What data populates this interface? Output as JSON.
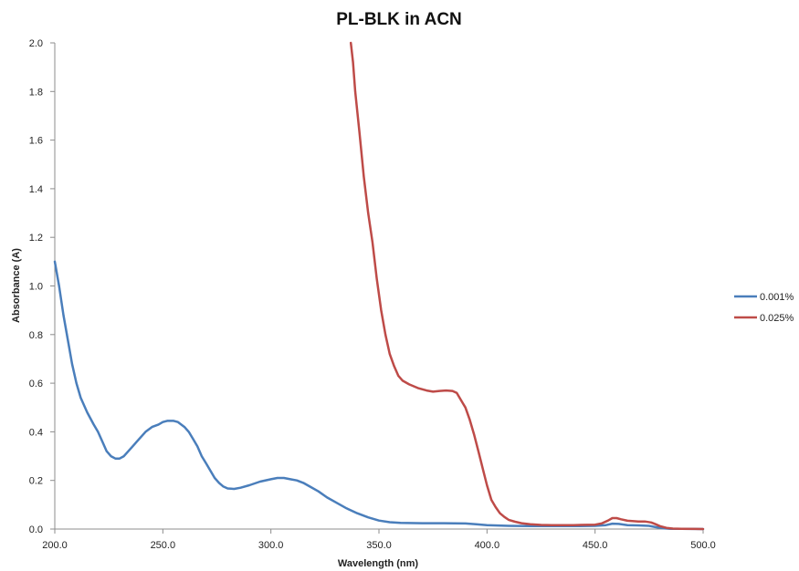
{
  "chart_data": {
    "type": "line",
    "title": "PL-BLK in ACN",
    "xlabel": "Wavelength (nm)",
    "ylabel": "Absorbance (A)",
    "xlim": [
      200,
      500
    ],
    "ylim": [
      0,
      2.0
    ],
    "x_ticks": [
      "200.0",
      "250.0",
      "300.0",
      "350.0",
      "400.0",
      "450.0",
      "500.0"
    ],
    "y_ticks": [
      "0.0",
      "0.2",
      "0.4",
      "0.6",
      "0.8",
      "1.0",
      "1.2",
      "1.4",
      "1.6",
      "1.8",
      "2.0"
    ],
    "grid": false,
    "legend_position": "right",
    "series": [
      {
        "name": "0.001%",
        "color": "#4a7ebb",
        "points": [
          [
            200,
            1.1
          ],
          [
            202,
            1.0
          ],
          [
            204,
            0.88
          ],
          [
            206,
            0.78
          ],
          [
            208,
            0.68
          ],
          [
            210,
            0.6
          ],
          [
            212,
            0.54
          ],
          [
            215,
            0.48
          ],
          [
            218,
            0.43
          ],
          [
            220,
            0.4
          ],
          [
            222,
            0.36
          ],
          [
            224,
            0.32
          ],
          [
            226,
            0.3
          ],
          [
            228,
            0.29
          ],
          [
            230,
            0.29
          ],
          [
            232,
            0.3
          ],
          [
            234,
            0.32
          ],
          [
            236,
            0.34
          ],
          [
            238,
            0.36
          ],
          [
            240,
            0.38
          ],
          [
            242,
            0.4
          ],
          [
            245,
            0.42
          ],
          [
            248,
            0.43
          ],
          [
            250,
            0.44
          ],
          [
            252,
            0.445
          ],
          [
            255,
            0.445
          ],
          [
            257,
            0.44
          ],
          [
            260,
            0.42
          ],
          [
            262,
            0.4
          ],
          [
            264,
            0.37
          ],
          [
            266,
            0.34
          ],
          [
            268,
            0.3
          ],
          [
            270,
            0.27
          ],
          [
            272,
            0.24
          ],
          [
            274,
            0.21
          ],
          [
            276,
            0.19
          ],
          [
            278,
            0.175
          ],
          [
            280,
            0.167
          ],
          [
            283,
            0.165
          ],
          [
            286,
            0.17
          ],
          [
            290,
            0.18
          ],
          [
            295,
            0.195
          ],
          [
            300,
            0.205
          ],
          [
            303,
            0.21
          ],
          [
            306,
            0.21
          ],
          [
            309,
            0.205
          ],
          [
            312,
            0.2
          ],
          [
            315,
            0.19
          ],
          [
            318,
            0.175
          ],
          [
            322,
            0.155
          ],
          [
            326,
            0.13
          ],
          [
            330,
            0.11
          ],
          [
            335,
            0.085
          ],
          [
            340,
            0.065
          ],
          [
            345,
            0.048
          ],
          [
            350,
            0.035
          ],
          [
            355,
            0.028
          ],
          [
            360,
            0.025
          ],
          [
            370,
            0.024
          ],
          [
            380,
            0.024
          ],
          [
            390,
            0.023
          ],
          [
            395,
            0.02
          ],
          [
            400,
            0.016
          ],
          [
            410,
            0.013
          ],
          [
            420,
            0.012
          ],
          [
            430,
            0.012
          ],
          [
            440,
            0.012
          ],
          [
            450,
            0.013
          ],
          [
            455,
            0.016
          ],
          [
            458,
            0.022
          ],
          [
            461,
            0.021
          ],
          [
            465,
            0.016
          ],
          [
            470,
            0.015
          ],
          [
            475,
            0.013
          ],
          [
            478,
            0.008
          ],
          [
            482,
            0.003
          ],
          [
            485,
            0.001
          ],
          [
            490,
            0.001
          ],
          [
            500,
            0.0
          ]
        ]
      },
      {
        "name": "0.025%",
        "color": "#be4b48",
        "points": [
          [
            337,
            2.0
          ],
          [
            338,
            1.92
          ],
          [
            339,
            1.8
          ],
          [
            341,
            1.63
          ],
          [
            343,
            1.45
          ],
          [
            345,
            1.3
          ],
          [
            347,
            1.18
          ],
          [
            349,
            1.03
          ],
          [
            351,
            0.9
          ],
          [
            353,
            0.8
          ],
          [
            355,
            0.72
          ],
          [
            357,
            0.67
          ],
          [
            359,
            0.63
          ],
          [
            361,
            0.61
          ],
          [
            364,
            0.595
          ],
          [
            368,
            0.58
          ],
          [
            372,
            0.57
          ],
          [
            375,
            0.565
          ],
          [
            378,
            0.568
          ],
          [
            381,
            0.57
          ],
          [
            384,
            0.568
          ],
          [
            386,
            0.56
          ],
          [
            388,
            0.53
          ],
          [
            390,
            0.5
          ],
          [
            392,
            0.45
          ],
          [
            394,
            0.39
          ],
          [
            396,
            0.32
          ],
          [
            398,
            0.25
          ],
          [
            400,
            0.18
          ],
          [
            402,
            0.12
          ],
          [
            404,
            0.09
          ],
          [
            406,
            0.065
          ],
          [
            408,
            0.05
          ],
          [
            410,
            0.038
          ],
          [
            413,
            0.03
          ],
          [
            416,
            0.024
          ],
          [
            420,
            0.02
          ],
          [
            425,
            0.017
          ],
          [
            430,
            0.016
          ],
          [
            440,
            0.016
          ],
          [
            450,
            0.018
          ],
          [
            453,
            0.023
          ],
          [
            456,
            0.035
          ],
          [
            458,
            0.045
          ],
          [
            460,
            0.045
          ],
          [
            462,
            0.04
          ],
          [
            465,
            0.034
          ],
          [
            470,
            0.031
          ],
          [
            473,
            0.031
          ],
          [
            476,
            0.027
          ],
          [
            478,
            0.02
          ],
          [
            480,
            0.012
          ],
          [
            483,
            0.005
          ],
          [
            486,
            0.002
          ],
          [
            490,
            0.001
          ],
          [
            500,
            0.0
          ]
        ]
      }
    ]
  }
}
